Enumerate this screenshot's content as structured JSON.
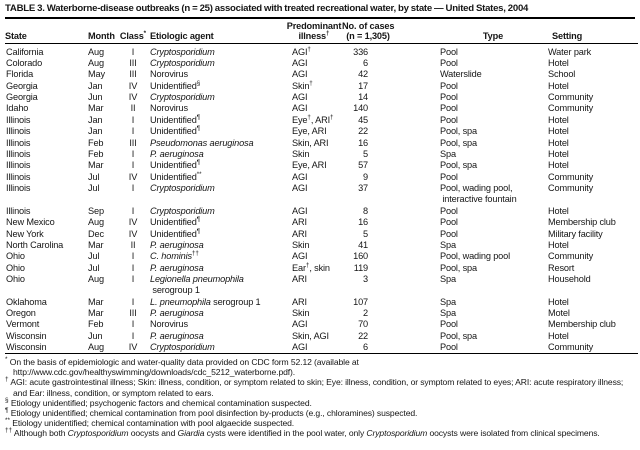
{
  "title": "TABLE 3. Waterborne-disease outbreaks (n = 25) associated with treated recreational water, by state — United States, 2004",
  "table": {
    "columns": [
      {
        "key": "state",
        "label": [
          [
            "t",
            "State"
          ]
        ]
      },
      {
        "key": "month",
        "label": [
          [
            "t",
            "Month"
          ]
        ]
      },
      {
        "key": "class",
        "label": [
          [
            "t",
            "Class"
          ],
          [
            "s",
            "*"
          ]
        ]
      },
      {
        "key": "agent",
        "label": [
          [
            "t",
            "Etiologic agent"
          ]
        ]
      },
      {
        "key": "illness",
        "label": [
          [
            "t",
            "Predominant"
          ],
          [
            "n"
          ],
          [
            "t",
            "illness"
          ],
          [
            "s",
            "†"
          ]
        ]
      },
      {
        "key": "cases",
        "label": [
          [
            "t",
            "No. of cases"
          ],
          [
            "n"
          ],
          [
            "t",
            "(n = 1,305)"
          ]
        ]
      },
      {
        "key": "type",
        "label": [
          [
            "t",
            "Type"
          ]
        ]
      },
      {
        "key": "setting",
        "label": [
          [
            "t",
            "Setting"
          ]
        ]
      }
    ],
    "rows": [
      {
        "state": "California",
        "month": "Aug",
        "class": "I",
        "agent": [
          [
            "i",
            "Cryptosporidium"
          ]
        ],
        "illness": [
          [
            "t",
            "AGI"
          ],
          [
            "s",
            "†"
          ]
        ],
        "cases": "336",
        "type": [
          [
            "t",
            "Pool"
          ]
        ],
        "setting": "Water park"
      },
      {
        "state": "Colorado",
        "month": "Aug",
        "class": "III",
        "agent": [
          [
            "i",
            "Cryptosporidium"
          ]
        ],
        "illness": [
          [
            "t",
            "AGI"
          ]
        ],
        "cases": "6",
        "type": [
          [
            "t",
            "Pool"
          ]
        ],
        "setting": "Hotel"
      },
      {
        "state": "Florida",
        "month": "May",
        "class": "III",
        "agent": [
          [
            "t",
            "Norovirus"
          ]
        ],
        "illness": [
          [
            "t",
            "AGI"
          ]
        ],
        "cases": "42",
        "type": [
          [
            "t",
            "Waterslide"
          ]
        ],
        "setting": "School"
      },
      {
        "state": "Georgia",
        "month": "Jan",
        "class": "IV",
        "agent": [
          [
            "t",
            "Unidentified"
          ],
          [
            "s",
            "§"
          ]
        ],
        "illness": [
          [
            "t",
            "Skin"
          ],
          [
            "s",
            "†"
          ]
        ],
        "cases": "17",
        "type": [
          [
            "t",
            "Pool"
          ]
        ],
        "setting": "Hotel"
      },
      {
        "state": "Georgia",
        "month": "Jun",
        "class": "IV",
        "agent": [
          [
            "i",
            "Cryptosporidium"
          ]
        ],
        "illness": [
          [
            "t",
            "AGI"
          ]
        ],
        "cases": "14",
        "type": [
          [
            "t",
            "Pool"
          ]
        ],
        "setting": "Community"
      },
      {
        "state": "Idaho",
        "month": "Mar",
        "class": "II",
        "agent": [
          [
            "t",
            "Norovirus"
          ]
        ],
        "illness": [
          [
            "t",
            "AGI"
          ]
        ],
        "cases": "140",
        "type": [
          [
            "t",
            "Pool"
          ]
        ],
        "setting": "Community"
      },
      {
        "state": "Illinois",
        "month": "Jan",
        "class": "I",
        "agent": [
          [
            "t",
            "Unidentified"
          ],
          [
            "s",
            "¶"
          ]
        ],
        "illness": [
          [
            "t",
            "Eye"
          ],
          [
            "s",
            "†"
          ],
          [
            "t",
            ", ARI"
          ],
          [
            "s",
            "†"
          ]
        ],
        "cases": "45",
        "type": [
          [
            "t",
            "Pool"
          ]
        ],
        "setting": "Hotel"
      },
      {
        "state": "Illinois",
        "month": "Jan",
        "class": "I",
        "agent": [
          [
            "t",
            "Unidentified"
          ],
          [
            "s",
            "¶"
          ]
        ],
        "illness": [
          [
            "t",
            "Eye, ARI"
          ]
        ],
        "cases": "22",
        "type": [
          [
            "t",
            "Pool, spa"
          ]
        ],
        "setting": "Hotel"
      },
      {
        "state": "Illinois",
        "month": "Feb",
        "class": "III",
        "agent": [
          [
            "i",
            "Pseudomonas aeruginosa"
          ]
        ],
        "illness": [
          [
            "t",
            "Skin, ARI"
          ]
        ],
        "cases": "16",
        "type": [
          [
            "t",
            "Pool, spa"
          ]
        ],
        "setting": "Hotel"
      },
      {
        "state": "Illinois",
        "month": "Feb",
        "class": "I",
        "agent": [
          [
            "i",
            "P. aeruginosa"
          ]
        ],
        "illness": [
          [
            "t",
            "Skin"
          ]
        ],
        "cases": "5",
        "type": [
          [
            "t",
            "Spa"
          ]
        ],
        "setting": "Hotel"
      },
      {
        "state": "Illinois",
        "month": "Mar",
        "class": "I",
        "agent": [
          [
            "t",
            "Unidentified"
          ],
          [
            "s",
            "¶"
          ]
        ],
        "illness": [
          [
            "t",
            "Eye, ARI"
          ]
        ],
        "cases": "57",
        "type": [
          [
            "t",
            "Pool, spa"
          ]
        ],
        "setting": "Hotel"
      },
      {
        "state": "Illinois",
        "month": "Jul",
        "class": "IV",
        "agent": [
          [
            "t",
            "Unidentified"
          ],
          [
            "s",
            "**"
          ]
        ],
        "illness": [
          [
            "t",
            "AGI"
          ]
        ],
        "cases": "9",
        "type": [
          [
            "t",
            "Pool"
          ]
        ],
        "setting": "Community"
      },
      {
        "state": "Illinois",
        "month": "Jul",
        "class": "I",
        "agent": [
          [
            "i",
            "Cryptosporidium"
          ]
        ],
        "illness": [
          [
            "t",
            "AGI"
          ]
        ],
        "cases": "37",
        "type": [
          [
            "t",
            "Pool, wading pool,"
          ],
          [
            "n"
          ],
          [
            "t",
            " interactive fountain"
          ]
        ],
        "setting": "Community"
      },
      {
        "state": "Illinois",
        "month": "Sep",
        "class": "I",
        "agent": [
          [
            "i",
            "Cryptosporidium"
          ]
        ],
        "illness": [
          [
            "t",
            "AGI"
          ]
        ],
        "cases": "8",
        "type": [
          [
            "t",
            "Pool"
          ]
        ],
        "setting": "Hotel"
      },
      {
        "state": "New Mexico",
        "month": "Aug",
        "class": "IV",
        "agent": [
          [
            "t",
            "Unidentified"
          ],
          [
            "s",
            "¶"
          ]
        ],
        "illness": [
          [
            "t",
            "ARI"
          ]
        ],
        "cases": "16",
        "type": [
          [
            "t",
            "Pool"
          ]
        ],
        "setting": "Membership club"
      },
      {
        "state": "New York",
        "month": "Dec",
        "class": "IV",
        "agent": [
          [
            "t",
            "Unidentified"
          ],
          [
            "s",
            "¶"
          ]
        ],
        "illness": [
          [
            "t",
            "ARI"
          ]
        ],
        "cases": "5",
        "type": [
          [
            "t",
            "Pool"
          ]
        ],
        "setting": "Military facility"
      },
      {
        "state": "North Carolina",
        "month": "Mar",
        "class": "II",
        "agent": [
          [
            "i",
            "P. aeruginosa"
          ]
        ],
        "illness": [
          [
            "t",
            "Skin"
          ]
        ],
        "cases": "41",
        "type": [
          [
            "t",
            "Spa"
          ]
        ],
        "setting": "Hotel"
      },
      {
        "state": "Ohio",
        "month": "Jul",
        "class": "I",
        "agent": [
          [
            "i",
            "C. hominis"
          ],
          [
            "s",
            "††"
          ]
        ],
        "illness": [
          [
            "t",
            "AGI"
          ]
        ],
        "cases": "160",
        "type": [
          [
            "t",
            "Pool, wading pool"
          ]
        ],
        "setting": "Community"
      },
      {
        "state": "Ohio",
        "month": "Jul",
        "class": "I",
        "agent": [
          [
            "i",
            "P. aeruginosa"
          ]
        ],
        "illness": [
          [
            "t",
            "Ear"
          ],
          [
            "s",
            "†"
          ],
          [
            "t",
            ", skin"
          ]
        ],
        "cases": "119",
        "type": [
          [
            "t",
            "Pool, spa"
          ]
        ],
        "setting": "Resort"
      },
      {
        "state": "Ohio",
        "month": "Aug",
        "class": "I",
        "agent": [
          [
            "i",
            "Legionella pneumophila"
          ],
          [
            "n"
          ],
          [
            "t",
            " serogroup 1"
          ]
        ],
        "illness": [
          [
            "t",
            "ARI"
          ]
        ],
        "cases": "3",
        "type": [
          [
            "t",
            "Spa"
          ]
        ],
        "setting": "Household"
      },
      {
        "state": "Oklahoma",
        "month": "Mar",
        "class": "I",
        "agent": [
          [
            "i",
            "L. pneumophila"
          ],
          [
            "t",
            " serogroup 1"
          ]
        ],
        "illness": [
          [
            "t",
            "ARI"
          ]
        ],
        "cases": "107",
        "type": [
          [
            "t",
            "Spa"
          ]
        ],
        "setting": "Hotel"
      },
      {
        "state": "Oregon",
        "month": "Mar",
        "class": "III",
        "agent": [
          [
            "i",
            "P. aeruginosa"
          ]
        ],
        "illness": [
          [
            "t",
            "Skin"
          ]
        ],
        "cases": "2",
        "type": [
          [
            "t",
            "Spa"
          ]
        ],
        "setting": "Motel"
      },
      {
        "state": "Vermont",
        "month": "Feb",
        "class": "I",
        "agent": [
          [
            "t",
            "Norovirus"
          ]
        ],
        "illness": [
          [
            "t",
            "AGI"
          ]
        ],
        "cases": "70",
        "type": [
          [
            "t",
            "Pool"
          ]
        ],
        "setting": "Membership club"
      },
      {
        "state": "Wisconsin",
        "month": "Jun",
        "class": "I",
        "agent": [
          [
            "i",
            "P. aeruginosa"
          ]
        ],
        "illness": [
          [
            "t",
            "Skin, AGI"
          ]
        ],
        "cases": "22",
        "type": [
          [
            "t",
            "Pool, spa"
          ]
        ],
        "setting": "Hotel"
      },
      {
        "state": "Wisconsin",
        "month": "Aug",
        "class": "IV",
        "agent": [
          [
            "i",
            "Cryptosporidium"
          ]
        ],
        "illness": [
          [
            "t",
            "AGI"
          ]
        ],
        "cases": "6",
        "type": [
          [
            "t",
            "Pool"
          ]
        ],
        "setting": "Community"
      }
    ]
  },
  "footnotes": [
    {
      "marker": "*",
      "segments": [
        [
          "t",
          "On the basis of epidemiologic and water-quality data provided on CDC form 52.12 (available at http://www.cdc.gov/healthyswimming/downloads/cdc_5212_waterborne.pdf)."
        ]
      ]
    },
    {
      "marker": "†",
      "segments": [
        [
          "t",
          "AGI: acute gastrointestinal illness; Skin: illness, condition, or symptom related to skin; Eye: illness, condition, or symptom related to eyes; ARI: acute respiratory illness; and Ear: illness, condition, or symptom related to ears."
        ]
      ]
    },
    {
      "marker": "§",
      "segments": [
        [
          "t",
          "Etiology unidentified; psychogenic factors and chemical contamination suspected."
        ]
      ]
    },
    {
      "marker": "¶",
      "segments": [
        [
          "t",
          "Etiology unidentified; chemical contamination from pool disinfection by-products (e.g., chloramines) suspected."
        ]
      ]
    },
    {
      "marker": "**",
      "segments": [
        [
          "t",
          "Etiology unidentified; chemical contamination with pool algaecide suspected."
        ]
      ]
    },
    {
      "marker": "††",
      "segments": [
        [
          "t",
          "Although both "
        ],
        [
          "i",
          "Cryptosporidium"
        ],
        [
          "t",
          " oocysts and "
        ],
        [
          "i",
          "Giardia"
        ],
        [
          "t",
          " cysts were identified in the pool water, only "
        ],
        [
          "i",
          "Cryptosporidium"
        ],
        [
          "t",
          " oocysts were isolated from clinical specimens."
        ]
      ]
    }
  ]
}
